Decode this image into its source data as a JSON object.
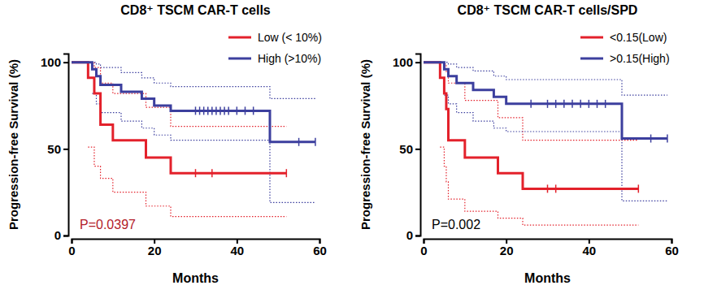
{
  "chart_data": [
    {
      "type": "line",
      "title": "CD8⁺ TSCM CAR-T cells",
      "x_label": "Months",
      "y_label": "Progression-free Survival (%)",
      "xlim": [
        0,
        60
      ],
      "ylim": [
        0,
        105
      ],
      "xticks": [
        0,
        20,
        40,
        60
      ],
      "yticks": [
        0,
        50,
        100
      ],
      "legend": "upper right",
      "line_style": "step",
      "marker": "tick",
      "annotations": [
        {
          "text": "P=0.0397",
          "color": "#b3202a"
        }
      ],
      "series": [
        {
          "name": "Low (< 10%)",
          "color": "#e3212b",
          "x": [
            0,
            4,
            5.5,
            7,
            10,
            18,
            24,
            52
          ],
          "values": [
            100,
            91,
            82,
            64,
            55,
            45,
            36,
            36
          ],
          "censored_x": [
            30,
            34,
            52
          ],
          "censored_values": [
            36,
            36,
            36
          ],
          "ci_x": [
            0,
            4,
            5.5,
            7,
            10,
            18,
            24,
            52
          ],
          "ci_lower": [
            null,
            51,
            40,
            33,
            25,
            17,
            11,
            11
          ],
          "ci_upper": [
            100,
            100,
            97,
            88,
            82,
            74,
            63,
            63
          ]
        },
        {
          "name": "High (>10%)",
          "color": "#3c3f9e",
          "x": [
            0,
            5,
            6,
            7,
            12,
            17,
            20,
            24,
            48,
            59
          ],
          "values": [
            100,
            96,
            92,
            87,
            83,
            79,
            75,
            72,
            54,
            54
          ],
          "censored_x": [
            30,
            31,
            32,
            33,
            34,
            35,
            36,
            37,
            38,
            40,
            42,
            44,
            55,
            59
          ],
          "censored_values": [
            72,
            72,
            72,
            72,
            72,
            72,
            72,
            72,
            72,
            72,
            72,
            72,
            54,
            54
          ],
          "ci_x": [
            0,
            5,
            6,
            7,
            12,
            17,
            20,
            24,
            48,
            59
          ],
          "ci_lower": [
            null,
            82,
            76,
            71,
            66,
            62,
            58,
            55,
            19,
            19
          ],
          "ci_upper": [
            100,
            100,
            99,
            97,
            94,
            91,
            88,
            86,
            79,
            79
          ]
        }
      ]
    },
    {
      "type": "line",
      "title": "CD8⁺ TSCM CAR-T cells/SPD",
      "x_label": "Months",
      "y_label": "Progression-free Survival (%)",
      "xlim": [
        0,
        60
      ],
      "ylim": [
        0,
        105
      ],
      "xticks": [
        0,
        20,
        40,
        60
      ],
      "yticks": [
        0,
        50,
        100
      ],
      "legend": "upper right",
      "line_style": "step",
      "marker": "tick",
      "annotations": [
        {
          "text": "P=0.002",
          "color": "#000000"
        }
      ],
      "series": [
        {
          "name": "<0.15(Low)",
          "color": "#e3212b",
          "x": [
            0,
            4,
            5,
            5.5,
            6,
            10,
            18,
            24,
            52
          ],
          "values": [
            100,
            91,
            82,
            73,
            55,
            45,
            36,
            27,
            27
          ],
          "censored_x": [
            30,
            32,
            52
          ],
          "censored_values": [
            27,
            27,
            27
          ],
          "ci_x": [
            0,
            4,
            5,
            5.5,
            6,
            10,
            18,
            24,
            52
          ],
          "ci_lower": [
            null,
            51,
            40,
            31,
            21,
            14,
            10,
            6,
            6
          ],
          "ci_upper": [
            100,
            100,
            99,
            94,
            88,
            78,
            68,
            55,
            55
          ]
        },
        {
          "name": ">0.15(High)",
          "color": "#3c3f9e",
          "x": [
            0,
            5,
            6,
            8,
            12,
            17,
            20,
            48,
            59
          ],
          "values": [
            100,
            96,
            92,
            88,
            84,
            80,
            76,
            56,
            56
          ],
          "censored_x": [
            26,
            30,
            32,
            34,
            36,
            38,
            40,
            42,
            44,
            55,
            59
          ],
          "censored_values": [
            76,
            76,
            76,
            76,
            76,
            76,
            76,
            76,
            76,
            56,
            56
          ],
          "ci_x": [
            0,
            5,
            6,
            8,
            12,
            17,
            20,
            48,
            59
          ],
          "ci_lower": [
            null,
            81,
            76,
            71,
            66,
            62,
            60,
            20,
            20
          ],
          "ci_upper": [
            100,
            100,
            99,
            97,
            95,
            92,
            90,
            81,
            81
          ]
        }
      ]
    }
  ]
}
